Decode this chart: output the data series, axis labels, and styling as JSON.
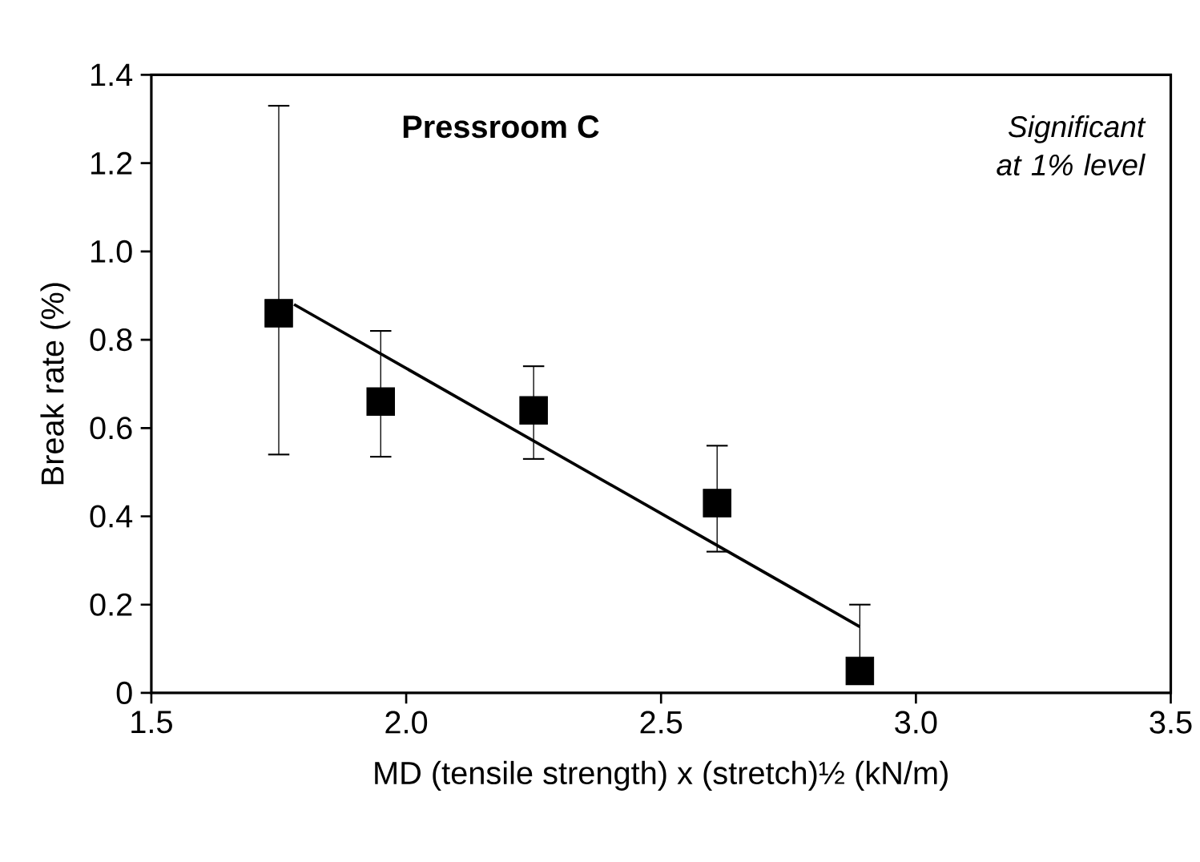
{
  "chart_data": {
    "type": "scatter",
    "xlabel": "MD (tensile strength) x (stretch)½ (kN/m)",
    "ylabel": "Break rate (%)",
    "annotations": [
      "Pressroom C",
      "Significant at 1% level"
    ],
    "series": [
      {
        "color": "#000000",
        "marker": "square",
        "x": [
          1.75,
          1.95,
          2.25,
          2.61,
          2.89
        ],
        "values": [
          0.86,
          0.66,
          0.64,
          0.43,
          0.05
        ],
        "errors": [
          [
            0.54,
            1.33
          ],
          [
            0.535,
            0.82
          ],
          [
            0.53,
            0.74
          ],
          [
            0.32,
            0.56
          ],
          [
            0.05,
            0.2
          ]
        ]
      },
      {
        "type": "line",
        "color": "#000000",
        "x": [
          1.78,
          2.89
        ],
        "values": [
          0.88,
          0.15
        ]
      }
    ],
    "xlim": [
      1.5,
      3.5
    ],
    "ylim": [
      0,
      1.4
    ],
    "xticks": [
      1.5,
      {
        "value": 2,
        "label": "2.0"
      },
      2.5,
      {
        "value": 3,
        "label": "3.0"
      },
      3.5
    ],
    "yticks": [
      0,
      0.2,
      0.4,
      0.6,
      0.8,
      {
        "value": 1,
        "label": "1.0"
      },
      1.2,
      1.4
    ],
    "grid": false
  }
}
